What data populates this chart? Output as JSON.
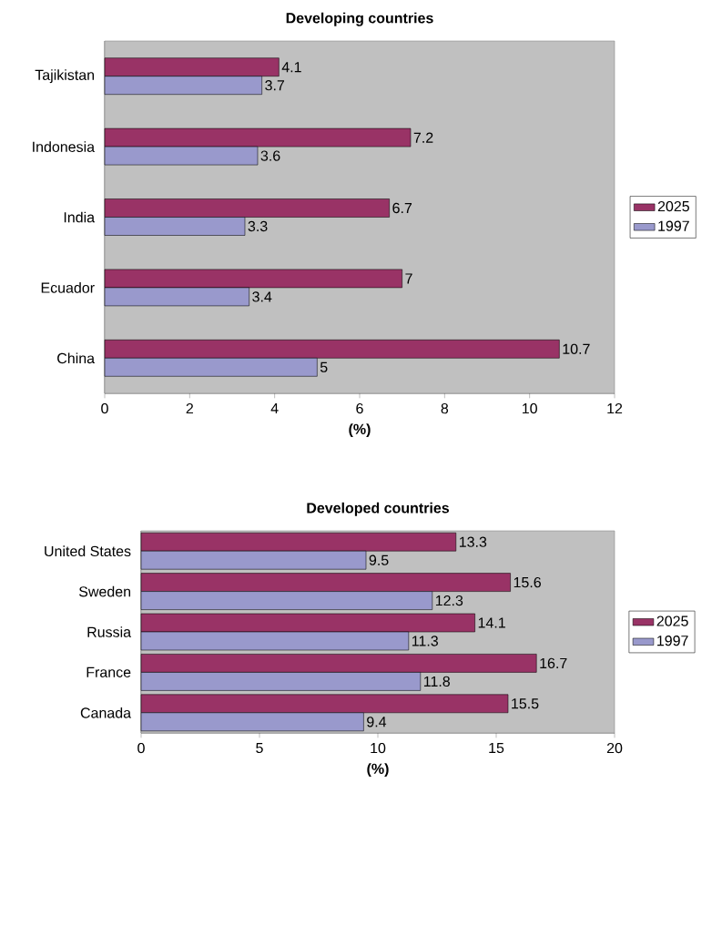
{
  "chart_data": [
    {
      "type": "bar",
      "orientation": "horizontal",
      "title": "Developing countries",
      "xlabel": "(%)",
      "categories": [
        "Tajikistan",
        "Indonesia",
        "India",
        "Ecuador",
        "China"
      ],
      "series": [
        {
          "name": "2025",
          "color": "#993366",
          "values": [
            4.1,
            7.2,
            6.7,
            7,
            10.7
          ]
        },
        {
          "name": "1997",
          "color": "#9999cc",
          "values": [
            3.7,
            3.6,
            3.3,
            3.4,
            5
          ]
        }
      ],
      "xlim": [
        0,
        12
      ],
      "xticks": [
        0,
        2,
        4,
        6,
        8,
        10,
        12
      ],
      "data_labels": true,
      "legend": "right"
    },
    {
      "type": "bar",
      "orientation": "horizontal",
      "title": "Developed countries",
      "xlabel": "(%)",
      "categories": [
        "United States",
        "Sweden",
        "Russia",
        "France",
        "Canada"
      ],
      "series": [
        {
          "name": "2025",
          "color": "#993366",
          "values": [
            13.3,
            15.6,
            14.1,
            16.7,
            15.5
          ]
        },
        {
          "name": "1997",
          "color": "#9999cc",
          "values": [
            9.5,
            12.3,
            11.3,
            11.8,
            9.4
          ]
        }
      ],
      "xlim": [
        0,
        20
      ],
      "xticks": [
        0,
        5,
        10,
        15,
        20
      ],
      "data_labels": true,
      "legend": "right"
    }
  ]
}
